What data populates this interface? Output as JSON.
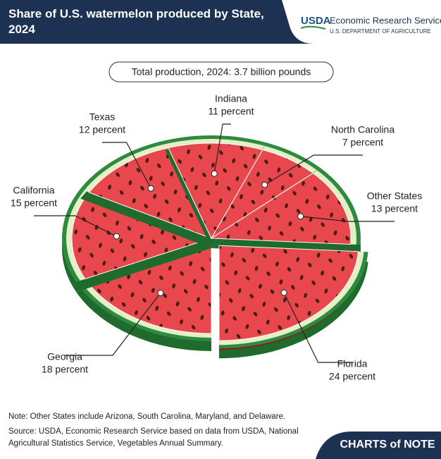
{
  "chart_data": {
    "type": "pie",
    "title": "Share of U.S. watermelon produced by State, 2024",
    "subtitle": "Total production, 2024: 3.7 billion pounds",
    "categories": [
      "Florida",
      "Georgia",
      "California",
      "Texas",
      "Indiana",
      "North Carolina",
      "Other States"
    ],
    "values": [
      24,
      18,
      15,
      12,
      11,
      7,
      13
    ],
    "value_labels": [
      "24 percent",
      "18 percent",
      "15 percent",
      "12 percent",
      "11 percent",
      "7 percent",
      "13 percent"
    ],
    "color": "#e8484d",
    "rind_color": "#2e8a3e",
    "exploded": "Florida",
    "note": "Note: Other States include Arizona, South Carolina, Maryland, and Delaware.",
    "source": "Source: USDA, Economic Research Service based on data from USDA, National Agricultural Statistics Service, Vegetables Annual Summary.",
    "publisher": {
      "logo": "USDA",
      "name": "Economic Research Service",
      "department": "U.S. DEPARTMENT OF AGRICULTURE",
      "series": "CHARTS of NOTE"
    }
  }
}
